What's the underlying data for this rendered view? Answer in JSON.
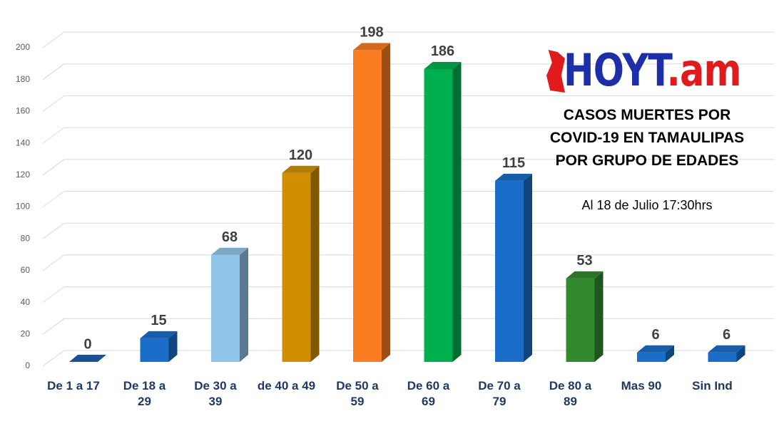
{
  "chart_data": {
    "type": "bar3d",
    "title": "CASOS MUERTES POR COVID-19 EN TAMAULIPAS POR GRUPO DE EDADES",
    "subtitle": "Al 18 de Julio 17:30hrs",
    "logo": {
      "main": "HOYT",
      "suffix": ".am"
    },
    "categories": [
      "De 1 a 17",
      "De 18 a\n29",
      "De 30 a\n39",
      "de 40 a 49",
      "De 50 a\n59",
      "De 60 a\n69",
      "De 70 a\n79",
      "De 80 a\n89",
      "Mas 90",
      "Sin Ind"
    ],
    "values": [
      0,
      15,
      68,
      120,
      198,
      186,
      115,
      53,
      6,
      6
    ],
    "colors": [
      "#1f5fa8",
      "#1a6dc8",
      "#92c5ea",
      "#d08f00",
      "#fb7d22",
      "#00b04f",
      "#1a6dc8",
      "#338a2e",
      "#1a6dc8",
      "#1a6dc8"
    ],
    "ylim": [
      0,
      200
    ],
    "yticks": [
      0,
      20,
      40,
      60,
      80,
      100,
      120,
      140,
      160,
      180,
      200
    ],
    "grid": true
  }
}
